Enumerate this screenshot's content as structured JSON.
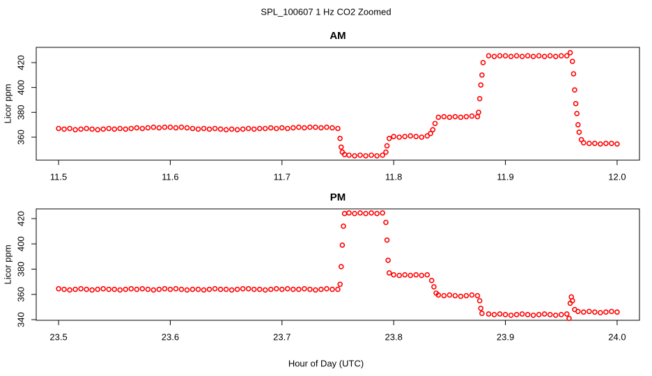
{
  "title": "SPL_100607  1 Hz CO2 Zoomed",
  "x_label": "Hour of Day (UTC)",
  "chart_data": [
    {
      "type": "scatter",
      "title": "AM",
      "y_label": "Licor ppm",
      "color": "#ff0000",
      "xlim": [
        11.48,
        12.02
      ],
      "ylim": [
        341.5,
        432.3
      ],
      "xticks": [
        11.5,
        11.6,
        11.7,
        11.8,
        11.9,
        {
          "value": 12,
          "label": "12.0"
        }
      ],
      "yticks": [
        360,
        380,
        400,
        420
      ],
      "x": [
        11.5,
        11.505,
        11.51,
        11.515,
        11.52,
        11.525,
        11.53,
        11.535,
        11.54,
        11.545,
        11.55,
        11.555,
        11.56,
        11.565,
        11.57,
        11.575,
        11.58,
        11.585,
        11.59,
        11.595,
        11.6,
        11.605,
        11.61,
        11.615,
        11.62,
        11.625,
        11.63,
        11.635,
        11.64,
        11.645,
        11.65,
        11.655,
        11.66,
        11.665,
        11.67,
        11.675,
        11.68,
        11.685,
        11.69,
        11.695,
        11.7,
        11.705,
        11.71,
        11.715,
        11.72,
        11.725,
        11.73,
        11.735,
        11.74,
        11.745,
        11.75,
        11.752,
        11.753,
        11.754,
        11.756,
        11.76,
        11.765,
        11.77,
        11.775,
        11.78,
        11.785,
        11.79,
        11.793,
        11.794,
        11.796,
        11.8,
        11.805,
        11.81,
        11.815,
        11.82,
        11.825,
        11.83,
        11.833,
        11.835,
        11.837,
        11.84,
        11.845,
        11.85,
        11.855,
        11.86,
        11.865,
        11.87,
        11.875,
        11.876,
        11.877,
        11.878,
        11.879,
        11.88,
        11.885,
        11.89,
        11.895,
        11.9,
        11.905,
        11.91,
        11.915,
        11.92,
        11.925,
        11.93,
        11.935,
        11.94,
        11.945,
        11.95,
        11.955,
        11.958,
        11.96,
        11.961,
        11.962,
        11.963,
        11.964,
        11.965,
        11.966,
        11.968,
        11.97,
        11.975,
        11.98,
        11.985,
        11.99,
        11.995,
        12.0
      ],
      "values": [
        367,
        366.5,
        367,
        366,
        366.5,
        367,
        366.5,
        366,
        366.5,
        367,
        366.5,
        367,
        366.5,
        367,
        367.5,
        367,
        367.5,
        368,
        367.5,
        368,
        368,
        367.5,
        368,
        367.5,
        367,
        366.5,
        367,
        366.5,
        367,
        366.5,
        366,
        366.5,
        366,
        366.5,
        367,
        366.5,
        367,
        367,
        367.5,
        367,
        367.5,
        367,
        367.5,
        368,
        367.5,
        368,
        368,
        367.5,
        368,
        367.5,
        367,
        359,
        352,
        348,
        346,
        345.5,
        345,
        345.5,
        345,
        345.5,
        345,
        345.5,
        348,
        353,
        359,
        360.5,
        360,
        360.5,
        361,
        360.5,
        360,
        361,
        363,
        366,
        371,
        376,
        376.5,
        376,
        376.5,
        376,
        376.5,
        377,
        376.5,
        380,
        391,
        402,
        410,
        420,
        425.5,
        425,
        425.5,
        425.5,
        425,
        425.5,
        425,
        425.5,
        425,
        425.5,
        425,
        425.5,
        425,
        425.5,
        425.5,
        428,
        421,
        411,
        398,
        387,
        379,
        370,
        364,
        358,
        355.5,
        355,
        355,
        354.5,
        355,
        355,
        354.5
      ]
    },
    {
      "type": "scatter",
      "title": "PM",
      "y_label": "Licor ppm",
      "color": "#ff0000",
      "xlim": [
        23.48,
        24.02
      ],
      "ylim": [
        339.5,
        427.7
      ],
      "xticks": [
        23.5,
        23.6,
        23.7,
        23.8,
        23.9,
        {
          "value": 24,
          "label": "24.0"
        }
      ],
      "yticks": [
        340,
        360,
        380,
        400,
        420
      ],
      "x": [
        23.5,
        23.505,
        23.51,
        23.515,
        23.52,
        23.525,
        23.53,
        23.535,
        23.54,
        23.545,
        23.55,
        23.555,
        23.56,
        23.565,
        23.57,
        23.575,
        23.58,
        23.585,
        23.59,
        23.595,
        23.6,
        23.605,
        23.61,
        23.615,
        23.62,
        23.625,
        23.63,
        23.635,
        23.64,
        23.645,
        23.65,
        23.655,
        23.66,
        23.665,
        23.67,
        23.675,
        23.68,
        23.685,
        23.69,
        23.695,
        23.7,
        23.705,
        23.71,
        23.715,
        23.72,
        23.725,
        23.73,
        23.735,
        23.74,
        23.745,
        23.75,
        23.752,
        23.753,
        23.754,
        23.755,
        23.756,
        23.76,
        23.765,
        23.77,
        23.775,
        23.78,
        23.785,
        23.79,
        23.793,
        23.794,
        23.795,
        23.796,
        23.8,
        23.805,
        23.81,
        23.815,
        23.82,
        23.825,
        23.83,
        23.834,
        23.836,
        23.838,
        23.84,
        23.845,
        23.85,
        23.855,
        23.86,
        23.865,
        23.87,
        23.875,
        23.877,
        23.878,
        23.879,
        23.885,
        23.89,
        23.895,
        23.9,
        23.905,
        23.91,
        23.915,
        23.92,
        23.925,
        23.93,
        23.935,
        23.94,
        23.945,
        23.95,
        23.955,
        23.957,
        23.958,
        23.959,
        23.96,
        23.962,
        23.965,
        23.97,
        23.975,
        23.98,
        23.985,
        23.99,
        23.995,
        24.0
      ],
      "values": [
        364.5,
        364,
        363.5,
        364,
        364.5,
        364,
        363.5,
        364,
        364.5,
        364,
        364,
        363.5,
        364,
        364.5,
        364,
        364.5,
        364,
        363.5,
        364,
        364.5,
        364,
        364.5,
        364,
        363.5,
        364,
        364,
        363.5,
        364,
        364.5,
        364,
        364,
        363.5,
        364,
        364.5,
        364.5,
        364,
        364,
        363.5,
        364,
        364.5,
        364,
        364.5,
        364,
        364,
        364.5,
        364,
        363.5,
        364,
        364.5,
        364,
        364,
        368,
        382,
        399,
        414,
        424,
        424.5,
        424,
        424.5,
        424,
        424.5,
        424,
        424.5,
        417,
        403,
        387,
        377,
        375.5,
        375,
        375.5,
        375,
        375.5,
        375,
        375.5,
        371,
        366,
        361,
        359.5,
        359,
        359.5,
        359,
        358.5,
        359,
        359.5,
        359,
        355,
        349,
        345,
        344.5,
        344,
        344.5,
        344,
        343.5,
        344,
        344.5,
        344,
        343.5,
        344,
        344.5,
        344,
        343.5,
        344,
        344.5,
        341,
        353,
        358,
        355,
        348,
        346.5,
        346,
        346.5,
        346,
        345.5,
        346,
        346.5,
        346
      ]
    }
  ]
}
